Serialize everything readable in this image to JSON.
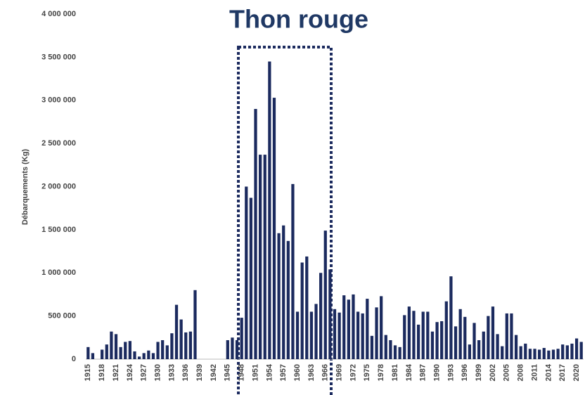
{
  "chart_data": {
    "type": "bar",
    "title": "Thon rouge",
    "y_label": "Débarquements (Kg)",
    "color": "#1b2a5e",
    "categories": [
      "1915",
      null,
      null,
      "1918",
      null,
      null,
      "1921",
      null,
      null,
      "1924",
      null,
      null,
      "1927",
      null,
      null,
      "1930",
      null,
      null,
      "1933",
      null,
      null,
      "1936",
      null,
      null,
      "1939",
      null,
      null,
      "1942",
      null,
      null,
      "1945",
      null,
      null,
      "1948",
      null,
      null,
      "1951",
      null,
      null,
      "1954",
      null,
      null,
      "1957",
      null,
      null,
      "1960",
      null,
      null,
      "1963",
      null,
      null,
      "1966",
      null,
      null,
      "1969",
      null,
      null,
      "1972",
      null,
      null,
      "1975",
      null,
      null,
      "1978",
      null,
      null,
      "1981",
      null,
      null,
      "1984",
      null,
      null,
      "1987",
      null,
      null,
      "1990",
      null,
      null,
      "1993",
      null,
      null,
      "1996",
      null,
      null,
      "1999",
      null,
      null,
      "2002",
      null,
      null,
      "2005",
      null,
      null,
      "2008",
      null,
      null,
      "2011",
      null,
      null,
      "2014",
      null,
      null,
      "2017",
      null,
      null,
      "2020",
      null
    ],
    "values": [
      140000,
      70000,
      0,
      110000,
      170000,
      320000,
      290000,
      140000,
      200000,
      210000,
      90000,
      30000,
      70000,
      100000,
      70000,
      200000,
      220000,
      160000,
      300000,
      630000,
      460000,
      310000,
      320000,
      800000,
      0,
      0,
      0,
      0,
      0,
      0,
      220000,
      250000,
      220000,
      480000,
      2000000,
      1870000,
      2900000,
      2370000,
      2370000,
      3450000,
      3030000,
      1460000,
      1550000,
      1370000,
      2030000,
      550000,
      1120000,
      1190000,
      550000,
      640000,
      1000000,
      1490000,
      1040000,
      580000,
      540000,
      740000,
      690000,
      750000,
      550000,
      530000,
      700000,
      270000,
      600000,
      730000,
      280000,
      220000,
      160000,
      140000,
      510000,
      610000,
      560000,
      400000,
      550000,
      550000,
      320000,
      430000,
      440000,
      670000,
      960000,
      380000,
      580000,
      490000,
      170000,
      420000,
      220000,
      320000,
      500000,
      610000,
      290000,
      150000,
      530000,
      530000,
      280000,
      150000,
      180000,
      120000,
      120000,
      110000,
      130000,
      100000,
      110000,
      120000,
      170000,
      160000,
      180000,
      240000,
      200000
    ],
    "ylim": [
      0,
      4000000
    ],
    "yticks": [
      0,
      {
        "value": 500000,
        "label": "500 000"
      },
      {
        "value": 1000000,
        "label": "1 000 000"
      },
      {
        "value": 1500000,
        "label": "1 500 000"
      },
      {
        "value": 2000000,
        "label": "2 000 000"
      },
      {
        "value": 2500000,
        "label": "2 500 000"
      },
      {
        "value": 3000000,
        "label": "3 000 000"
      },
      {
        "value": 3500000,
        "label": "3 500 000"
      },
      {
        "value": 4000000,
        "label": "4 000 000"
      }
    ]
  }
}
